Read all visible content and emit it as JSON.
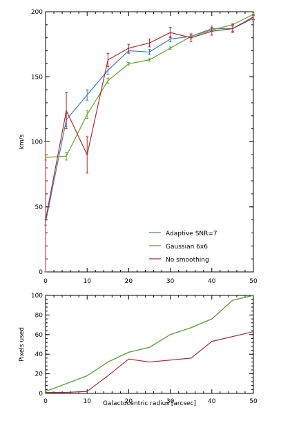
{
  "chart_data": [
    {
      "type": "line",
      "title": "",
      "xlabel": "",
      "ylabel": "km/s",
      "xlim": [
        0,
        50
      ],
      "ylim": [
        0,
        200
      ],
      "x_ticks": [
        "0",
        "10",
        "20",
        "30",
        "40",
        "50"
      ],
      "y_ticks": [
        "0",
        "50",
        "100",
        "150",
        "200"
      ],
      "grid": false,
      "legend_position": "bottom-right",
      "x": [
        0,
        5,
        10,
        15,
        20,
        25,
        30,
        35,
        40,
        45,
        50
      ],
      "series": [
        {
          "name": "Adaptive SNR=7",
          "color": "#3d7fc4",
          "values": [
            38,
            117,
            136,
            155,
            170,
            169,
            179,
            181,
            187,
            187,
            195
          ],
          "errors": [
            2,
            5,
            4,
            3,
            2,
            2,
            2,
            2,
            2,
            2,
            2
          ]
        },
        {
          "name": "Gaussian 6x6",
          "color": "#5ea428",
          "values": [
            88,
            89,
            121,
            147,
            160,
            163,
            172,
            181,
            186,
            190,
            198
          ],
          "errors": [
            2,
            3,
            3,
            2,
            1,
            1,
            1,
            1,
            1,
            1,
            1
          ]
        },
        {
          "name": "No smoothing",
          "color": "#b0282e",
          "values": [
            40,
            124,
            90,
            163,
            172,
            176,
            184,
            180,
            185,
            187,
            196
          ],
          "errors": [
            60,
            14,
            14,
            5,
            3,
            3,
            4,
            3,
            3,
            3,
            2
          ]
        }
      ]
    },
    {
      "type": "line",
      "title": "",
      "xlabel": "Galactocentric radius [arcsec]",
      "ylabel": "Pixels used",
      "xlim": [
        0,
        50
      ],
      "ylim": [
        0,
        100
      ],
      "x_ticks": [
        "0",
        "10",
        "20",
        "30",
        "40",
        "50"
      ],
      "y_ticks": [
        "0",
        "20",
        "40",
        "60",
        "80",
        "100"
      ],
      "grid": false,
      "x": [
        0,
        5,
        10,
        15,
        20,
        25,
        30,
        35,
        40,
        45,
        50
      ],
      "series": [
        {
          "name": "Adaptive SNR=7",
          "color": "#3d7fc4",
          "values": [
            2,
            10,
            18,
            32,
            42,
            47,
            60,
            67,
            76,
            95,
            102
          ]
        },
        {
          "name": "Gaussian 6x6",
          "color": "#5ea428",
          "values": [
            2,
            10,
            18,
            32,
            42,
            47,
            60,
            67,
            76,
            95,
            102
          ]
        },
        {
          "name": "No smoothing",
          "color": "#b0282e",
          "values": [
            1,
            1,
            2,
            18,
            35,
            32,
            34,
            36,
            53,
            58,
            63
          ]
        }
      ]
    }
  ]
}
